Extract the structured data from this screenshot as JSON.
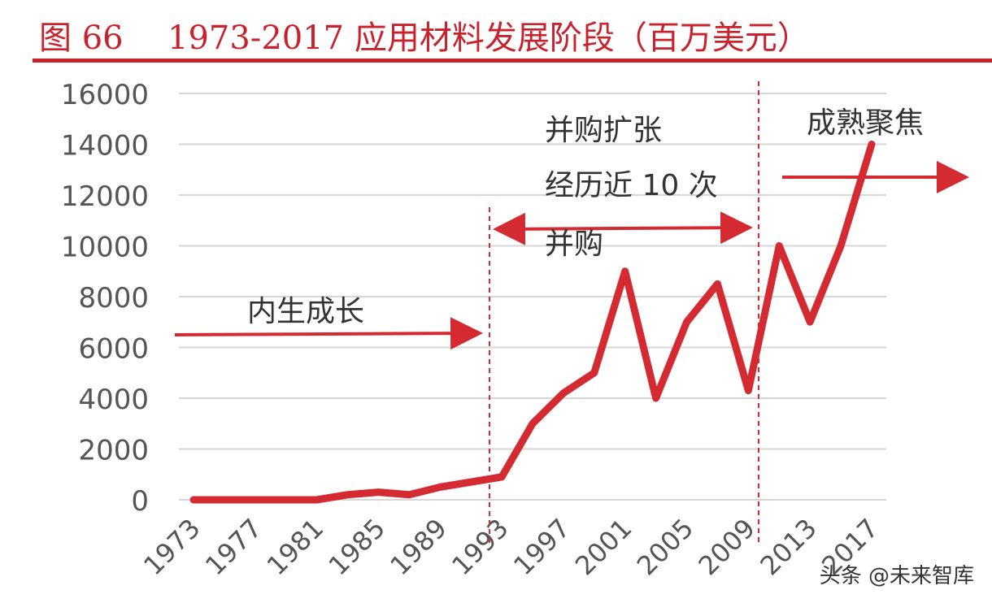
{
  "header": {
    "figure_label": "图 66",
    "title": "1973-2017 应用材料发展阶段（百万美元）"
  },
  "chart_data": {
    "type": "line",
    "title": "1973-2017 应用材料发展阶段（百万美元）",
    "xlabel": "",
    "ylabel": "",
    "ylim": [
      0,
      16000
    ],
    "yticks": [
      "0",
      "2000",
      "4000",
      "6000",
      "8000",
      "10000",
      "12000",
      "14000",
      "16000"
    ],
    "xticks": [
      "1973",
      "1977",
      "1981",
      "1985",
      "1989",
      "1993",
      "1997",
      "2001",
      "2005",
      "2009",
      "2013",
      "2017"
    ],
    "grid": true,
    "legend": "none",
    "line_color": "#d42a31",
    "series": [
      {
        "x": [
          1973,
          1975,
          1977,
          1979,
          1981,
          1983,
          1985,
          1987,
          1989,
          1991,
          1993,
          1995,
          1997,
          1999,
          2001,
          2003,
          2005,
          2007,
          2009,
          2011,
          2013,
          2015,
          2017
        ],
        "values": [
          0,
          0,
          0,
          0,
          0,
          200,
          300,
          200,
          500,
          700,
          900,
          3000,
          4200,
          5000,
          9000,
          4000,
          7000,
          8500,
          4300,
          10000,
          7000,
          10000,
          14000
        ]
      }
    ],
    "phase_dividers": [
      1993,
      2009
    ],
    "annotations": {
      "phase1": "内生成长",
      "phase2_line1": "并购扩张",
      "phase2_line2": "经历近 10 次",
      "phase2_line3": "并购",
      "phase3": "成熟聚焦"
    }
  },
  "watermark": "头条 @未来智库"
}
